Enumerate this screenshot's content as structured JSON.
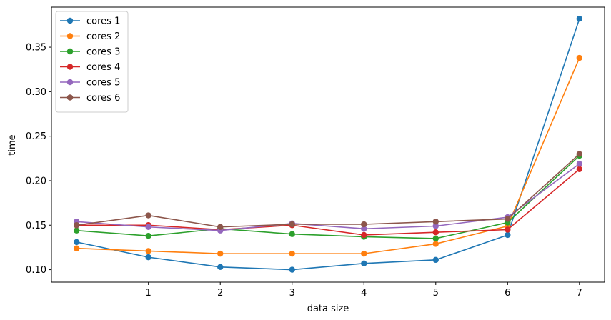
{
  "chart_data": {
    "type": "line",
    "title": "",
    "xlabel": "data size",
    "ylabel": "time",
    "x": [
      0,
      1,
      2,
      3,
      4,
      5,
      6,
      7
    ],
    "xticks": [
      1,
      2,
      3,
      4,
      5,
      6,
      7
    ],
    "yticks": [
      0.1,
      0.15,
      0.2,
      0.25,
      0.3,
      0.35
    ],
    "xlim": [
      -0.35,
      7.35
    ],
    "ylim": [
      0.086,
      0.395
    ],
    "grid": false,
    "legend_position": "top-left",
    "series": [
      {
        "name": "cores 1",
        "color": "#1f77b4",
        "values": [
          0.131,
          0.114,
          0.103,
          0.1,
          0.107,
          0.111,
          0.139,
          0.382
        ]
      },
      {
        "name": "cores 2",
        "color": "#ff7f0e",
        "values": [
          0.124,
          0.121,
          0.118,
          0.118,
          0.118,
          0.129,
          0.149,
          0.338
        ]
      },
      {
        "name": "cores 3",
        "color": "#2ca02c",
        "values": [
          0.144,
          0.138,
          0.146,
          0.14,
          0.137,
          0.135,
          0.153,
          0.228
        ]
      },
      {
        "name": "cores 4",
        "color": "#d62728",
        "values": [
          0.15,
          0.15,
          0.145,
          0.15,
          0.139,
          0.142,
          0.145,
          0.213
        ]
      },
      {
        "name": "cores 5",
        "color": "#9467bd",
        "values": [
          0.154,
          0.148,
          0.144,
          0.152,
          0.146,
          0.149,
          0.159,
          0.219
        ]
      },
      {
        "name": "cores 6",
        "color": "#8c564b",
        "values": [
          0.15,
          0.161,
          0.148,
          0.151,
          0.151,
          0.154,
          0.157,
          0.23
        ]
      }
    ]
  }
}
